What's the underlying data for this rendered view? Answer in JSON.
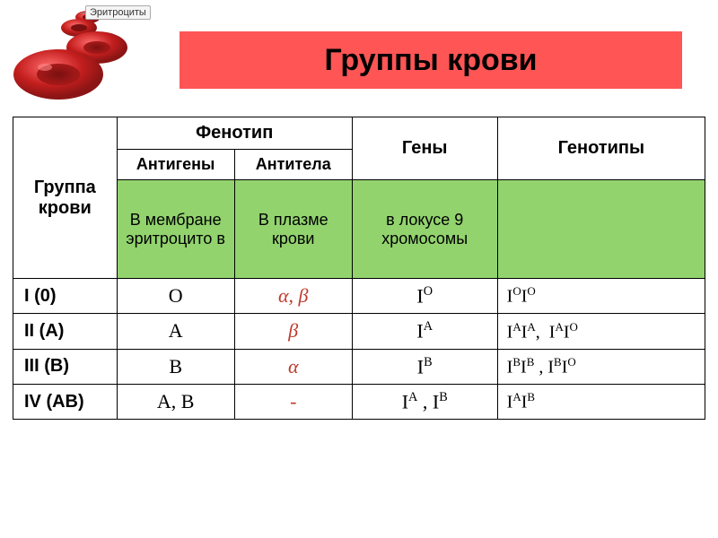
{
  "title": "Группы крови",
  "erythro_label": "Эритроциты",
  "cell_colors": {
    "main": "#c41e1e",
    "shade": "#8b1515",
    "highlight": "#ff6b6b",
    "center": "#7a1010"
  },
  "title_bar_color": "#ff5555",
  "green_bg": "#92d36e",
  "headers": {
    "group": "Группа крови",
    "phenotype": "Фенотип",
    "antigens": "Антигены",
    "antibodies": "Антитела",
    "genes": "Гены",
    "genotypes": "Генотипы"
  },
  "green_row": {
    "antigens": "В мембране эритроцито\nв",
    "antibodies": "В плазме крови",
    "genes": "в локусе 9 хромосомы"
  },
  "rows": [
    {
      "label": "I (0)",
      "antigen": "O",
      "antibody": "α, β",
      "gene": "I<sup>O</sup>",
      "genotype": "I<sup>O</sup>I<sup>O</sup>"
    },
    {
      "label": "II (A)",
      "antigen": "A",
      "antibody": "β",
      "gene": "I<sup>A</sup>",
      "genotype": "I<sup>A</sup>I<sup>A</sup>,&nbsp;&nbsp;I<sup>A</sup>I<sup>O</sup>"
    },
    {
      "label": "III (B)",
      "antigen": "B",
      "antibody": "α",
      "gene": "I<sup>B</sup>",
      "genotype": "I<sup>B</sup>I<sup>B</sup> , I<sup>B</sup>I<sup>O</sup>"
    },
    {
      "label": "IV (AB)",
      "antigen": "A, B",
      "antibody": "-",
      "gene": "I<sup>A</sup> , I<sup>B</sup>",
      "genotype": "I<sup>A</sup>I<sup>B</sup>"
    }
  ]
}
